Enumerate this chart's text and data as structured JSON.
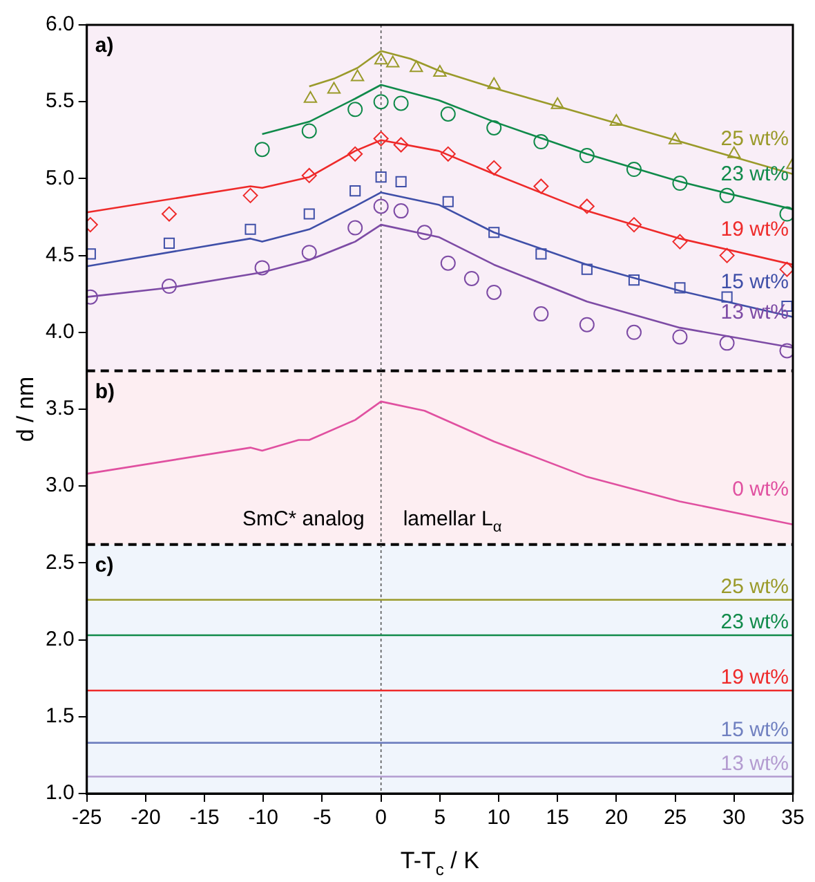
{
  "chart_data": {
    "type": "line",
    "xlabel": "T-T$_{c}$ / K",
    "ylabel": "d / nm",
    "xlim": [
      -25,
      35
    ],
    "xticks": [
      -25,
      -20,
      -15,
      -10,
      -5,
      0,
      5,
      10,
      15,
      20,
      25,
      30,
      35
    ],
    "ylim": [
      1,
      6
    ],
    "yticks": [
      {
        "value": 1,
        "label": "1.0"
      },
      {
        "value": 1.5,
        "label": "1.5"
      },
      {
        "value": 2,
        "label": "2.0"
      },
      {
        "value": 2.5,
        "label": "2.5"
      },
      {
        "value": 3,
        "label": "3.0"
      },
      {
        "value": 3.5,
        "label": "3.5"
      },
      {
        "value": 4,
        "label": "4.0"
      },
      {
        "value": 4.5,
        "label": "4.5"
      },
      {
        "value": 5,
        "label": "5.0"
      },
      {
        "value": 5.5,
        "label": "5.5"
      },
      {
        "value": 6,
        "label": "6.0"
      }
    ],
    "grid": false,
    "legend": false,
    "bands": [
      {
        "axis": "y",
        "from": 3.75,
        "to": 6,
        "label": "a)",
        "color": "#f9eef7"
      },
      {
        "axis": "y",
        "from": 2.62,
        "to": 3.75,
        "label": "b)",
        "color": "#fdeef2"
      },
      {
        "axis": "y",
        "from": 1,
        "to": 2.62,
        "label": "c)",
        "color": "#f0f5fc"
      }
    ],
    "ref_lines": [
      {
        "axis": "y",
        "value": 3.75,
        "color": "#000000",
        "line_style": "dashed"
      },
      {
        "axis": "y",
        "value": 2.62,
        "color": "#000000",
        "line_style": "dashed"
      },
      {
        "axis": "x",
        "value": 0,
        "color": "#555555",
        "line_style": "dotted"
      }
    ],
    "annotations": [
      "SmC* analog",
      "lamellar L$_{α}$"
    ],
    "series": [
      {
        "type": "scatter",
        "marker": "triangle",
        "color": "#9a9a2a",
        "x": [
          -6,
          -4,
          -2,
          0,
          1,
          3,
          5,
          9.6,
          15,
          20,
          25,
          30,
          35
        ],
        "values": [
          5.52,
          5.58,
          5.66,
          5.77,
          5.75,
          5.72,
          5.69,
          5.61,
          5.48,
          5.37,
          5.25,
          5.16,
          5.09
        ]
      },
      {
        "marker": "none",
        "name": "25 wt%",
        "color": "#9a9a2a",
        "x": [
          -6.1,
          -4,
          -2,
          0,
          2.5,
          5,
          10,
          15,
          20,
          25,
          30,
          35
        ],
        "values": [
          5.6,
          5.65,
          5.72,
          5.83,
          5.78,
          5.7,
          5.58,
          5.47,
          5.36,
          5.25,
          5.14,
          5.03
        ]
      },
      {
        "type": "scatter",
        "marker": "circle",
        "color": "#108a4a",
        "x": [
          -10.1,
          -6.1,
          -2.2,
          0,
          1.7,
          5.7,
          9.6,
          13.6,
          17.5,
          21.5,
          25.4,
          29.4,
          34.5
        ],
        "values": [
          5.19,
          5.31,
          5.45,
          5.5,
          5.49,
          5.42,
          5.33,
          5.24,
          5.15,
          5.06,
          4.97,
          4.89,
          4.77
        ]
      },
      {
        "marker": "none",
        "name": "23 wt%",
        "color": "#108a4a",
        "x": [
          -10.1,
          -6.1,
          -2.2,
          0,
          4.9,
          9.6,
          17.5,
          25.4,
          35
        ],
        "values": [
          5.29,
          5.37,
          5.52,
          5.61,
          5.51,
          5.37,
          5.16,
          4.98,
          4.8
        ]
      },
      {
        "type": "scatter",
        "marker": "diamond",
        "color": "#ee2a2a",
        "x": [
          -24.7,
          -18,
          -11.1,
          -6.1,
          -2.2,
          0,
          1.7,
          5.7,
          9.6,
          13.6,
          17.5,
          21.5,
          25.4,
          29.4,
          34.5
        ],
        "values": [
          4.7,
          4.77,
          4.89,
          5.02,
          5.16,
          5.26,
          5.22,
          5.16,
          5.07,
          4.95,
          4.82,
          4.7,
          4.59,
          4.5,
          4.41
        ]
      },
      {
        "marker": "none",
        "name": "19 wt%",
        "color": "#ee2a2a",
        "x": [
          -25,
          -11.1,
          -10.1,
          -6.1,
          -2.2,
          0,
          4.9,
          9.6,
          17.5,
          25.4,
          35
        ],
        "values": [
          4.78,
          4.95,
          4.94,
          5.01,
          5.18,
          5.25,
          5.18,
          5.03,
          4.79,
          4.61,
          4.44
        ]
      },
      {
        "type": "scatter",
        "marker": "square",
        "color": "#3f4fa8",
        "x": [
          -24.7,
          -18,
          -11.1,
          -6.1,
          -2.2,
          0,
          1.7,
          5.7,
          9.6,
          13.6,
          17.5,
          21.5,
          25.4,
          29.4,
          34.5
        ],
        "values": [
          4.51,
          4.58,
          4.67,
          4.77,
          4.92,
          5.01,
          4.98,
          4.85,
          4.65,
          4.51,
          4.41,
          4.34,
          4.29,
          4.23,
          4.17
        ]
      },
      {
        "marker": "none",
        "name": "15 wt%",
        "color": "#3f4fa8",
        "x": [
          -25,
          -11.1,
          -10.1,
          -6.1,
          -2.2,
          0,
          4.9,
          9.6,
          17.5,
          25.4,
          35
        ],
        "values": [
          4.43,
          4.61,
          4.59,
          4.67,
          4.82,
          4.91,
          4.83,
          4.65,
          4.44,
          4.27,
          4.1
        ]
      },
      {
        "type": "scatter",
        "marker": "circle",
        "color": "#7d4ba5",
        "x": [
          -24.7,
          -18,
          -10.1,
          -6.1,
          -2.2,
          0,
          1.7,
          3.7,
          5.7,
          7.7,
          9.6,
          13.6,
          17.5,
          21.5,
          25.4,
          29.4,
          34.5
        ],
        "values": [
          4.23,
          4.3,
          4.42,
          4.52,
          4.68,
          4.82,
          4.79,
          4.65,
          4.45,
          4.35,
          4.26,
          4.12,
          4.05,
          4,
          3.97,
          3.93,
          3.88
        ]
      },
      {
        "marker": "none",
        "name": "13 wt%",
        "color": "#7d4ba5",
        "x": [
          -25,
          -18,
          -10.1,
          -6.1,
          -2.2,
          0,
          4.9,
          9.6,
          17.5,
          25.4,
          35
        ],
        "values": [
          4.23,
          4.29,
          4.39,
          4.47,
          4.59,
          4.7,
          4.62,
          4.44,
          4.2,
          4.03,
          3.9
        ]
      },
      {
        "marker": "none",
        "name": "0 wt%",
        "color": "#e050a0",
        "x": [
          -25,
          -11.1,
          -10.1,
          -7,
          -6.1,
          -2.2,
          0,
          3.7,
          9.6,
          17.5,
          25.4,
          35
        ],
        "values": [
          3.08,
          3.25,
          3.23,
          3.3,
          3.3,
          3.43,
          3.55,
          3.49,
          3.29,
          3.06,
          2.9,
          2.75
        ]
      },
      {
        "marker": "none",
        "name": "25 wt%",
        "color": "#9a9a2a",
        "x": [
          -25,
          35
        ],
        "values": [
          2.26,
          2.26
        ]
      },
      {
        "marker": "none",
        "name": "23 wt%",
        "color": "#108a4a",
        "x": [
          -25,
          35
        ],
        "values": [
          2.03,
          2.03
        ]
      },
      {
        "marker": "none",
        "name": "19 wt%",
        "color": "#ee2a2a",
        "x": [
          -25,
          35
        ],
        "values": [
          1.67,
          1.67
        ]
      },
      {
        "marker": "none",
        "name": "15 wt%",
        "color": "#7080c0",
        "x": [
          -25,
          35
        ],
        "values": [
          1.33,
          1.33
        ]
      },
      {
        "marker": "none",
        "name": "13 wt%",
        "color": "#b39bd0",
        "x": [
          -25,
          35
        ],
        "values": [
          1.11,
          1.11
        ]
      }
    ]
  }
}
